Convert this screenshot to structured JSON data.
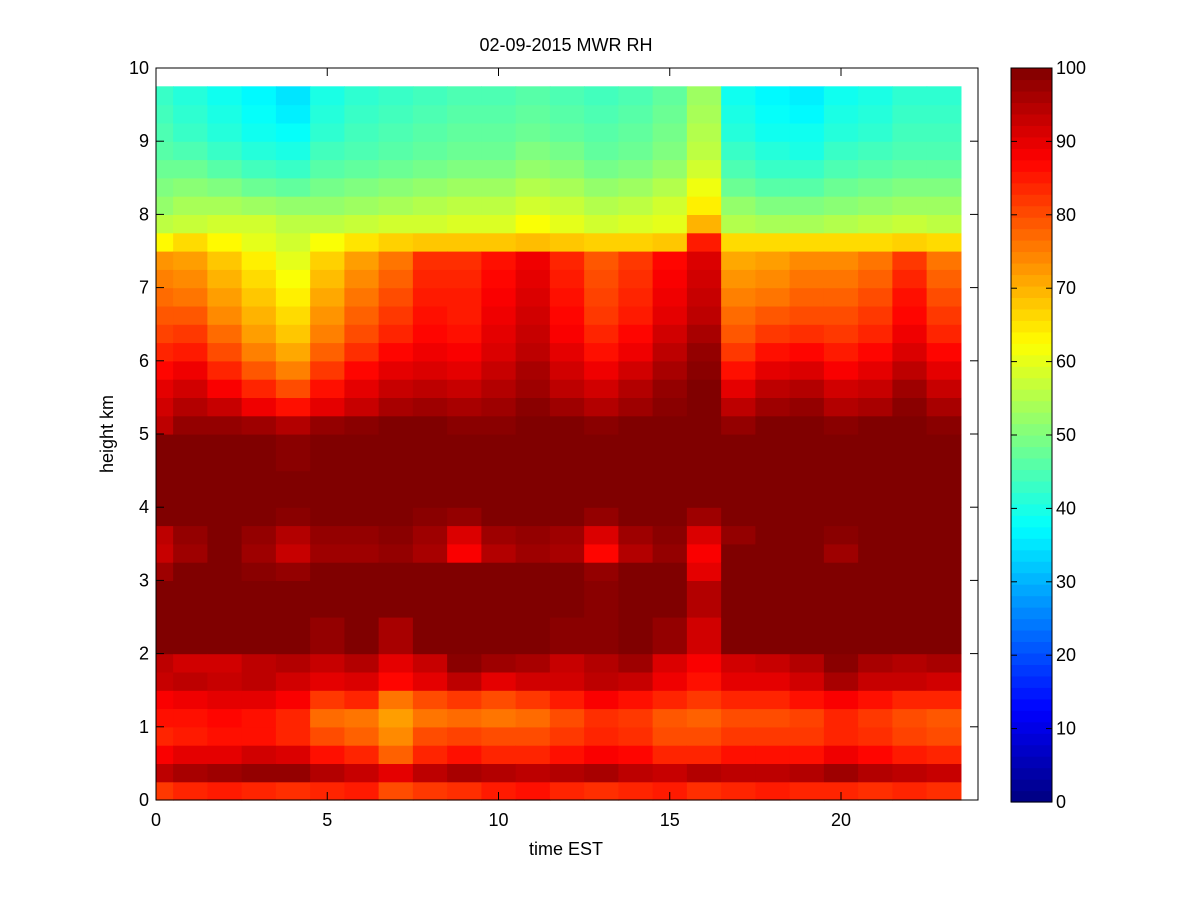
{
  "chart_data": {
    "type": "heatmap",
    "title": "02-09-2015 MWR RH",
    "xlabel": "time EST",
    "ylabel": "height km",
    "xlim": [
      0,
      24
    ],
    "ylim": [
      0,
      10
    ],
    "xticks": [
      0,
      5,
      10,
      15,
      20
    ],
    "yticks": [
      0,
      1,
      2,
      3,
      4,
      5,
      6,
      7,
      8,
      9,
      10
    ],
    "colorbar": {
      "min": 0,
      "max": 100,
      "ticks": [
        0,
        10,
        20,
        30,
        40,
        50,
        60,
        70,
        80,
        90,
        100
      ],
      "colormap": "jet"
    },
    "x": [
      0,
      1,
      2,
      3,
      4,
      5,
      6,
      7,
      8,
      9,
      10,
      11,
      12,
      13,
      14,
      15,
      16,
      17,
      18,
      19,
      20,
      21,
      22,
      23
    ],
    "heights": [
      0,
      0.25,
      0.5,
      0.75,
      1,
      1.25,
      1.5,
      1.75,
      2,
      2.5,
      3,
      3.25,
      3.5,
      3.75,
      4,
      4.5,
      5,
      5.25,
      5.5,
      5.75,
      6,
      6.25,
      6.5,
      6.75,
      7,
      7.25,
      7.5,
      7.75,
      8,
      8.25,
      8.5,
      8.75,
      9,
      9.25,
      9.5,
      9.75
    ],
    "rh": [
      [
        82,
        84,
        85,
        84,
        83,
        84,
        85,
        80,
        82,
        83,
        85,
        86,
        84,
        83,
        84,
        85,
        83,
        84,
        85,
        84,
        84,
        83,
        84,
        83
      ],
      [
        94,
        96,
        97,
        98,
        98,
        95,
        93,
        90,
        94,
        96,
        95,
        94,
        95,
        96,
        94,
        93,
        95,
        94,
        94,
        95,
        97,
        95,
        94,
        93
      ],
      [
        88,
        90,
        90,
        92,
        91,
        86,
        84,
        78,
        84,
        86,
        84,
        84,
        86,
        88,
        87,
        84,
        84,
        86,
        86,
        86,
        89,
        87,
        85,
        84
      ],
      [
        84,
        85,
        86,
        86,
        84,
        80,
        78,
        74,
        80,
        81,
        80,
        80,
        82,
        84,
        83,
        80,
        80,
        82,
        82,
        82,
        84,
        83,
        81,
        80
      ],
      [
        86,
        86,
        87,
        86,
        84,
        77,
        76,
        72,
        76,
        77,
        76,
        77,
        80,
        83,
        82,
        79,
        78,
        80,
        80,
        81,
        84,
        82,
        80,
        79
      ],
      [
        88,
        89,
        90,
        90,
        88,
        82,
        84,
        76,
        80,
        82,
        80,
        82,
        85,
        88,
        86,
        84,
        82,
        84,
        84,
        86,
        88,
        86,
        84,
        84
      ],
      [
        93,
        94,
        93,
        94,
        92,
        90,
        91,
        87,
        90,
        94,
        90,
        92,
        92,
        94,
        93,
        89,
        86,
        90,
        90,
        92,
        96,
        93,
        93,
        92
      ],
      [
        94,
        92,
        92,
        94,
        95,
        93,
        95,
        90,
        93,
        99,
        97,
        96,
        93,
        95,
        97,
        91,
        88,
        92,
        93,
        95,
        99,
        96,
        95,
        96
      ],
      [
        100,
        100,
        100,
        100,
        100,
        98,
        100,
        96,
        100,
        100,
        100,
        100,
        99,
        99,
        100,
        98,
        92,
        100,
        100,
        100,
        100,
        100,
        100,
        100
      ],
      [
        100,
        100,
        100,
        100,
        100,
        100,
        100,
        100,
        100,
        100,
        100,
        100,
        100,
        99,
        100,
        100,
        95,
        100,
        100,
        100,
        100,
        100,
        100,
        100
      ],
      [
        97,
        100,
        100,
        99,
        98,
        100,
        100,
        100,
        100,
        100,
        100,
        100,
        100,
        98,
        100,
        100,
        90,
        100,
        100,
        100,
        100,
        100,
        100,
        100
      ],
      [
        93,
        97,
        100,
        97,
        93,
        97,
        97,
        98,
        96,
        88,
        95,
        97,
        96,
        87,
        95,
        98,
        88,
        100,
        100,
        100,
        97,
        100,
        100,
        100
      ],
      [
        94,
        98,
        100,
        98,
        95,
        98,
        98,
        99,
        97,
        91,
        97,
        98,
        97,
        91,
        97,
        99,
        91,
        98,
        100,
        100,
        99,
        100,
        100,
        100
      ],
      [
        100,
        100,
        100,
        100,
        99,
        100,
        100,
        100,
        99,
        98,
        100,
        100,
        100,
        98,
        100,
        100,
        97,
        100,
        100,
        100,
        100,
        100,
        100,
        100
      ],
      [
        100,
        100,
        100,
        100,
        100,
        100,
        100,
        100,
        100,
        100,
        100,
        100,
        100,
        100,
        100,
        100,
        100,
        100,
        100,
        100,
        100,
        100,
        100,
        100
      ],
      [
        100,
        100,
        100,
        100,
        99,
        100,
        100,
        100,
        100,
        100,
        100,
        100,
        100,
        100,
        100,
        100,
        100,
        100,
        100,
        100,
        100,
        100,
        100,
        100
      ],
      [
        94,
        98,
        98,
        97,
        95,
        98,
        99,
        100,
        100,
        99,
        99,
        100,
        100,
        99,
        100,
        100,
        100,
        98,
        100,
        100,
        99,
        100,
        100,
        99
      ],
      [
        92,
        95,
        93,
        89,
        86,
        90,
        93,
        96,
        97,
        96,
        97,
        99,
        97,
        95,
        97,
        99,
        100,
        94,
        97,
        98,
        95,
        96,
        99,
        96
      ],
      [
        90,
        92,
        88,
        84,
        80,
        86,
        90,
        93,
        94,
        93,
        95,
        97,
        94,
        92,
        95,
        98,
        100,
        90,
        94,
        95,
        92,
        93,
        97,
        93
      ],
      [
        87,
        89,
        84,
        79,
        75,
        82,
        87,
        90,
        91,
        90,
        93,
        96,
        92,
        89,
        92,
        96,
        99,
        86,
        90,
        91,
        88,
        90,
        94,
        90
      ],
      [
        84,
        85,
        80,
        75,
        71,
        78,
        83,
        87,
        89,
        88,
        91,
        94,
        90,
        86,
        89,
        94,
        98,
        82,
        86,
        87,
        85,
        87,
        91,
        87
      ],
      [
        81,
        82,
        77,
        72,
        68,
        75,
        80,
        84,
        87,
        86,
        90,
        93,
        88,
        84,
        87,
        92,
        96,
        79,
        82,
        83,
        82,
        84,
        89,
        84
      ],
      [
        79,
        79,
        74,
        70,
        66,
        73,
        78,
        82,
        86,
        85,
        89,
        92,
        87,
        82,
        85,
        90,
        94,
        77,
        79,
        80,
        80,
        82,
        87,
        82
      ],
      [
        77,
        76,
        72,
        68,
        64,
        71,
        76,
        80,
        85,
        85,
        88,
        91,
        86,
        81,
        84,
        89,
        93,
        75,
        76,
        78,
        78,
        80,
        86,
        80
      ],
      [
        75,
        74,
        70,
        66,
        62,
        69,
        74,
        78,
        84,
        84,
        87,
        90,
        85,
        80,
        83,
        88,
        92,
        73,
        74,
        76,
        76,
        78,
        84,
        78
      ],
      [
        73,
        72,
        68,
        64,
        60,
        67,
        72,
        76,
        83,
        83,
        86,
        89,
        84,
        79,
        82,
        87,
        91,
        71,
        72,
        74,
        74,
        76,
        82,
        76
      ],
      [
        63,
        66,
        63,
        60,
        58,
        62,
        65,
        67,
        68,
        68,
        68,
        69,
        68,
        67,
        67,
        68,
        85,
        66,
        66,
        66,
        66,
        66,
        67,
        66
      ],
      [
        56,
        57,
        58,
        58,
        56,
        56,
        57,
        58,
        58,
        59,
        59,
        62,
        60,
        58,
        59,
        60,
        70,
        55,
        54,
        54,
        55,
        56,
        57,
        56
      ],
      [
        52,
        54,
        54,
        53,
        52,
        52,
        53,
        54,
        55,
        56,
        56,
        58,
        57,
        55,
        56,
        58,
        64,
        52,
        50,
        50,
        51,
        52,
        53,
        53
      ],
      [
        50,
        51,
        50,
        48,
        47,
        49,
        50,
        51,
        52,
        53,
        53,
        55,
        54,
        52,
        53,
        55,
        61,
        48,
        46,
        46,
        48,
        49,
        50,
        50
      ],
      [
        48,
        48,
        46,
        44,
        43,
        46,
        47,
        48,
        49,
        50,
        50,
        52,
        51,
        49,
        50,
        52,
        58,
        45,
        43,
        43,
        45,
        46,
        47,
        47
      ],
      [
        46,
        45,
        43,
        41,
        40,
        44,
        45,
        46,
        47,
        48,
        48,
        50,
        49,
        47,
        48,
        50,
        56,
        43,
        41,
        40,
        43,
        44,
        45,
        45
      ],
      [
        45,
        43,
        41,
        39,
        38,
        42,
        44,
        45,
        46,
        47,
        47,
        48,
        47,
        46,
        47,
        49,
        55,
        41,
        39,
        39,
        41,
        42,
        44,
        44
      ],
      [
        44,
        42,
        40,
        38,
        36,
        41,
        43,
        44,
        45,
        46,
        46,
        47,
        46,
        45,
        46,
        48,
        54,
        40,
        38,
        37,
        40,
        41,
        43,
        43
      ],
      [
        43,
        41,
        39,
        37,
        35,
        40,
        42,
        43,
        44,
        45,
        45,
        46,
        45,
        44,
        45,
        47,
        53,
        39,
        37,
        36,
        39,
        40,
        42,
        42
      ],
      [
        43,
        41,
        39,
        37,
        35,
        40,
        42,
        43,
        44,
        45,
        45,
        46,
        45,
        44,
        45,
        47,
        53,
        39,
        37,
        36,
        39,
        40,
        42,
        42
      ]
    ]
  }
}
